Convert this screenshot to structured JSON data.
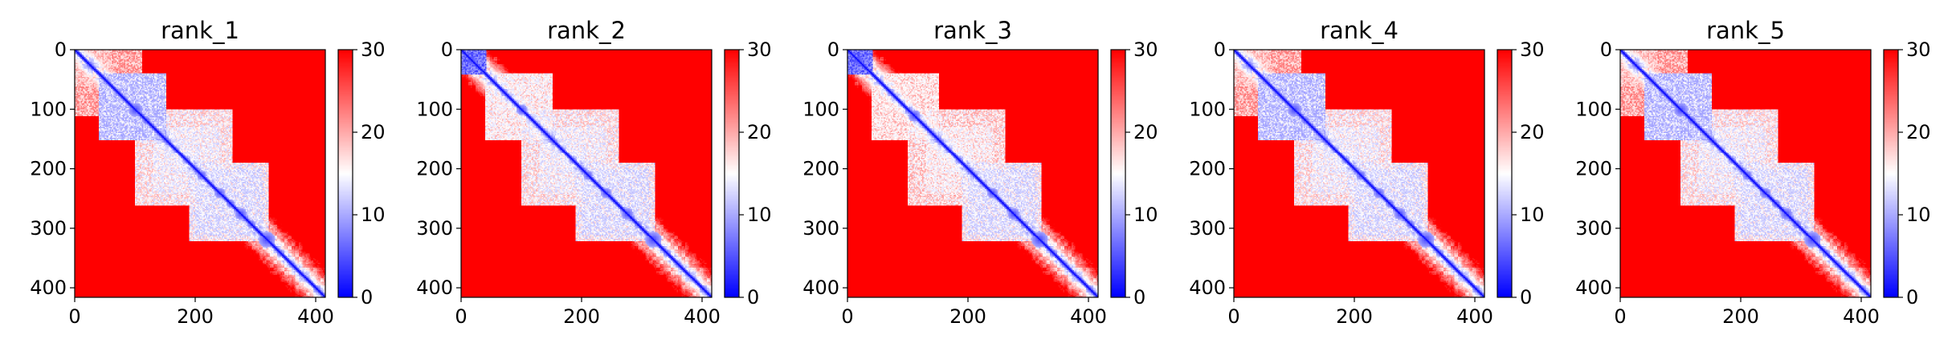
{
  "chart_data": [
    {
      "type": "heatmap",
      "title": "rank_1",
      "x_ticks": [
        0,
        200,
        400
      ],
      "y_ticks": [
        0,
        100,
        200,
        300,
        400
      ],
      "xlim": [
        0,
        416
      ],
      "ylim": [
        416,
        0
      ],
      "colorbar": {
        "ticks": [
          0,
          10,
          20,
          30
        ],
        "range": [
          0,
          30
        ],
        "colormap": "bwr"
      },
      "n_residues": 416,
      "diag_blobs": [
        [
          100,
          12
        ],
        [
          118,
          7
        ],
        [
          150,
          6
        ],
        [
          210,
          8
        ],
        [
          240,
          9
        ],
        [
          258,
          7
        ],
        [
          275,
          10
        ],
        [
          292,
          7
        ],
        [
          318,
          14
        ]
      ],
      "white_regions": [
        [
          40,
          150,
          40,
          150,
          9
        ],
        [
          100,
          240,
          130,
          260,
          12
        ],
        [
          190,
          310,
          200,
          320,
          11
        ],
        [
          0,
          110,
          0,
          60,
          16
        ]
      ],
      "colors": {
        "low": "#0000ff",
        "mid": "#ffffff",
        "high": "#ff0000"
      }
    },
    {
      "type": "heatmap",
      "title": "rank_2",
      "x_ticks": [
        0,
        200,
        400
      ],
      "y_ticks": [
        0,
        100,
        200,
        300,
        400
      ],
      "xlim": [
        0,
        416
      ],
      "ylim": [
        416,
        0
      ],
      "colorbar": {
        "ticks": [
          0,
          10,
          20,
          30
        ],
        "range": [
          0,
          30
        ],
        "colormap": "bwr"
      },
      "n_residues": 416,
      "corner_block": [
        0,
        40
      ],
      "diag_blobs": [
        [
          18,
          12
        ],
        [
          100,
          9
        ],
        [
          150,
          6
        ],
        [
          210,
          8
        ],
        [
          240,
          9
        ],
        [
          275,
          10
        ],
        [
          318,
          14
        ]
      ],
      "white_regions": [
        [
          40,
          150,
          40,
          150,
          13
        ],
        [
          100,
          240,
          130,
          260,
          12
        ],
        [
          190,
          310,
          200,
          320,
          11
        ]
      ],
      "colors": {
        "low": "#0000ff",
        "mid": "#ffffff",
        "high": "#ff0000"
      }
    },
    {
      "type": "heatmap",
      "title": "rank_3",
      "x_ticks": [
        0,
        200,
        400
      ],
      "y_ticks": [
        0,
        100,
        200,
        300,
        400
      ],
      "xlim": [
        0,
        416
      ],
      "ylim": [
        416,
        0
      ],
      "colorbar": {
        "ticks": [
          0,
          10,
          20,
          30
        ],
        "range": [
          0,
          30
        ],
        "colormap": "bwr"
      },
      "n_residues": 416,
      "corner_block": [
        0,
        40
      ],
      "diag_blobs": [
        [
          18,
          14
        ],
        [
          110,
          10
        ],
        [
          150,
          6
        ],
        [
          240,
          9
        ],
        [
          275,
          10
        ],
        [
          318,
          14
        ]
      ],
      "white_regions": [
        [
          40,
          150,
          40,
          150,
          14
        ],
        [
          100,
          240,
          130,
          260,
          13
        ],
        [
          190,
          310,
          200,
          320,
          11
        ]
      ],
      "colors": {
        "low": "#0000ff",
        "mid": "#ffffff",
        "high": "#ff0000"
      }
    },
    {
      "type": "heatmap",
      "title": "rank_4",
      "x_ticks": [
        0,
        200,
        400
      ],
      "y_ticks": [
        0,
        100,
        200,
        300,
        400
      ],
      "xlim": [
        0,
        416
      ],
      "ylim": [
        416,
        0
      ],
      "colorbar": {
        "ticks": [
          0,
          10,
          20,
          30
        ],
        "range": [
          0,
          30
        ],
        "colormap": "bwr"
      },
      "n_residues": 416,
      "diag_blobs": [
        [
          100,
          12
        ],
        [
          118,
          7
        ],
        [
          150,
          6
        ],
        [
          210,
          8
        ],
        [
          240,
          9
        ],
        [
          258,
          7
        ],
        [
          275,
          10
        ],
        [
          292,
          7
        ],
        [
          318,
          14
        ]
      ],
      "white_regions": [
        [
          40,
          150,
          40,
          150,
          9
        ],
        [
          100,
          240,
          130,
          260,
          12
        ],
        [
          190,
          310,
          200,
          320,
          11
        ],
        [
          0,
          110,
          0,
          60,
          16
        ]
      ],
      "colors": {
        "low": "#0000ff",
        "mid": "#ffffff",
        "high": "#ff0000"
      }
    },
    {
      "type": "heatmap",
      "title": "rank_5",
      "x_ticks": [
        0,
        200,
        400
      ],
      "y_ticks": [
        0,
        100,
        200,
        300,
        400
      ],
      "xlim": [
        0,
        416
      ],
      "ylim": [
        416,
        0
      ],
      "colorbar": {
        "ticks": [
          0,
          10,
          20,
          30
        ],
        "range": [
          0,
          30
        ],
        "colormap": "bwr"
      },
      "n_residues": 416,
      "diag_blobs": [
        [
          100,
          12
        ],
        [
          118,
          7
        ],
        [
          150,
          6
        ],
        [
          210,
          8
        ],
        [
          240,
          9
        ],
        [
          258,
          7
        ],
        [
          275,
          10
        ],
        [
          292,
          7
        ],
        [
          318,
          14
        ]
      ],
      "white_regions": [
        [
          40,
          150,
          40,
          150,
          9
        ],
        [
          100,
          240,
          130,
          260,
          12
        ],
        [
          190,
          310,
          200,
          320,
          11
        ],
        [
          0,
          110,
          0,
          60,
          16
        ]
      ],
      "colors": {
        "low": "#0000ff",
        "mid": "#ffffff",
        "high": "#ff0000"
      }
    }
  ]
}
